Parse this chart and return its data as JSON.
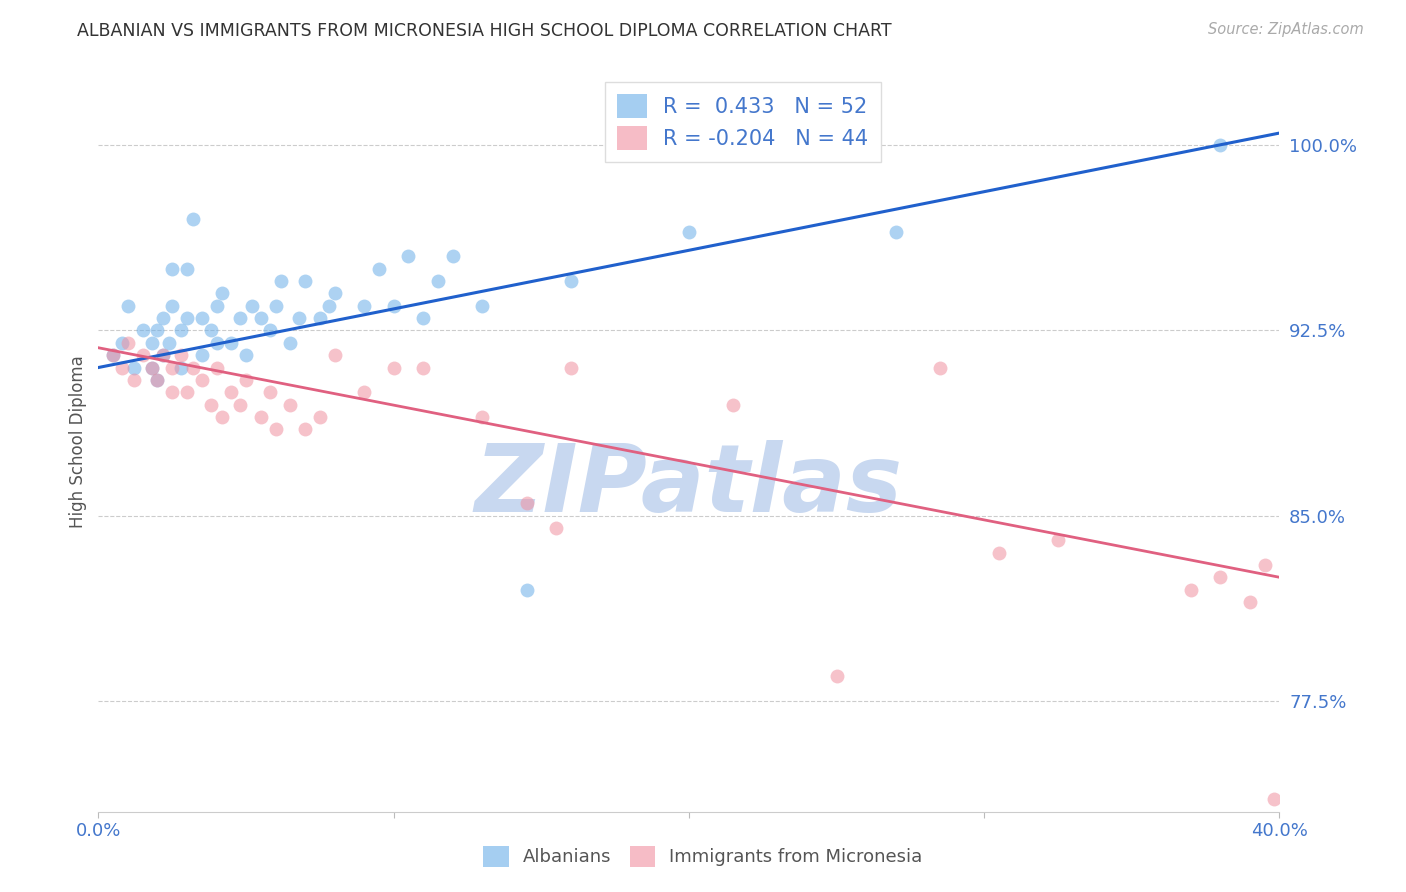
{
  "title": "ALBANIAN VS IMMIGRANTS FROM MICRONESIA HIGH SCHOOL DIPLOMA CORRELATION CHART",
  "source": "Source: ZipAtlas.com",
  "ylabel": "High School Diploma",
  "xlim": [
    0.0,
    0.4
  ],
  "ylim": [
    73.0,
    103.0
  ],
  "legend_R_blue": "0.433",
  "legend_N_blue": "52",
  "legend_R_pink": "-0.204",
  "legend_N_pink": "44",
  "blue_color": "#6aaee8",
  "pink_color": "#f090a0",
  "trend_blue_color": "#2060cc",
  "trend_pink_color": "#e06080",
  "watermark_color": "#c8d8f0",
  "title_color": "#333333",
  "axis_label_color": "#4477cc",
  "grid_color": "#cccccc",
  "blue_scatter_x": [
    0.005,
    0.008,
    0.01,
    0.012,
    0.015,
    0.018,
    0.018,
    0.02,
    0.02,
    0.022,
    0.022,
    0.024,
    0.025,
    0.025,
    0.028,
    0.028,
    0.03,
    0.03,
    0.032,
    0.035,
    0.035,
    0.038,
    0.04,
    0.04,
    0.042,
    0.045,
    0.048,
    0.05,
    0.052,
    0.055,
    0.058,
    0.06,
    0.062,
    0.065,
    0.068,
    0.07,
    0.075,
    0.078,
    0.08,
    0.09,
    0.095,
    0.1,
    0.105,
    0.11,
    0.115,
    0.12,
    0.13,
    0.145,
    0.16,
    0.2,
    0.27,
    0.38
  ],
  "blue_scatter_y": [
    91.5,
    92.0,
    93.5,
    91.0,
    92.5,
    91.0,
    92.0,
    90.5,
    92.5,
    91.5,
    93.0,
    92.0,
    93.5,
    95.0,
    91.0,
    92.5,
    93.0,
    95.0,
    97.0,
    91.5,
    93.0,
    92.5,
    92.0,
    93.5,
    94.0,
    92.0,
    93.0,
    91.5,
    93.5,
    93.0,
    92.5,
    93.5,
    94.5,
    92.0,
    93.0,
    94.5,
    93.0,
    93.5,
    94.0,
    93.5,
    95.0,
    93.5,
    95.5,
    93.0,
    94.5,
    95.5,
    93.5,
    82.0,
    94.5,
    96.5,
    96.5,
    100.0
  ],
  "pink_scatter_x": [
    0.005,
    0.008,
    0.01,
    0.012,
    0.015,
    0.018,
    0.02,
    0.022,
    0.025,
    0.025,
    0.028,
    0.03,
    0.032,
    0.035,
    0.038,
    0.04,
    0.042,
    0.045,
    0.048,
    0.05,
    0.055,
    0.058,
    0.06,
    0.065,
    0.07,
    0.075,
    0.08,
    0.09,
    0.1,
    0.11,
    0.13,
    0.145,
    0.155,
    0.16,
    0.215,
    0.25,
    0.285,
    0.305,
    0.325,
    0.37,
    0.38,
    0.39,
    0.395,
    0.398
  ],
  "pink_scatter_y": [
    91.5,
    91.0,
    92.0,
    90.5,
    91.5,
    91.0,
    90.5,
    91.5,
    90.0,
    91.0,
    91.5,
    90.0,
    91.0,
    90.5,
    89.5,
    91.0,
    89.0,
    90.0,
    89.5,
    90.5,
    89.0,
    90.0,
    88.5,
    89.5,
    88.5,
    89.0,
    91.5,
    90.0,
    91.0,
    91.0,
    89.0,
    85.5,
    84.5,
    91.0,
    89.5,
    78.5,
    91.0,
    83.5,
    84.0,
    82.0,
    82.5,
    81.5,
    83.0,
    73.5
  ],
  "blue_trend_x0": 0.0,
  "blue_trend_x1": 0.4,
  "blue_trend_y0": 91.0,
  "blue_trend_y1": 100.5,
  "pink_trend_x0": 0.0,
  "pink_trend_x1": 0.4,
  "pink_trend_y0": 91.8,
  "pink_trend_y1": 82.5,
  "ytick_vals": [
    77.5,
    85.0,
    92.5,
    100.0
  ],
  "ytick_labels": [
    "77.5%",
    "85.0%",
    "92.5%",
    "100.0%"
  ],
  "xtick_vals": [
    0.0,
    0.1,
    0.2,
    0.3,
    0.4
  ],
  "xtick_labels": [
    "0.0%",
    "",
    "",
    "",
    "40.0%"
  ]
}
